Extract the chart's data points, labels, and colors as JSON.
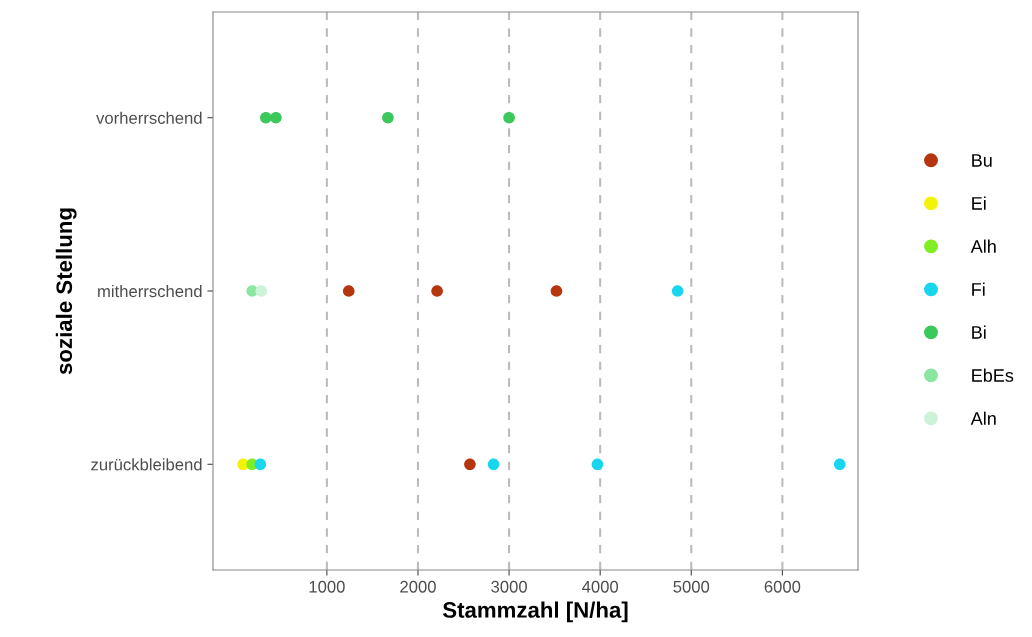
{
  "chart_data": {
    "type": "scatter",
    "orientation": "horizontal",
    "xlabel": "Stammzahl [N/ha]",
    "ylabel": "soziale Stellung",
    "categories": [
      "vorherrschend",
      "mitherrschend",
      "zurückbleibend"
    ],
    "xlim": [
      -250,
      6830
    ],
    "xticks": [
      1000,
      2000,
      3000,
      4000,
      5000,
      6000
    ],
    "grid": "x",
    "line_style": "dashed",
    "legend": "right",
    "marker": "circle",
    "series": [
      {
        "name": "Bu",
        "color": "#b5360f",
        "values": [
          null,
          1240,
          2570
        ]
      },
      {
        "name": "Ei",
        "color": "#f5f20a",
        "values": [
          null,
          null,
          80
        ]
      },
      {
        "name": "Alh",
        "color": "#80ee22",
        "values": [
          null,
          null,
          180
        ]
      },
      {
        "name": "Fi",
        "color": "#1ad5ee",
        "values": [
          null,
          4850,
          270
        ]
      },
      {
        "name": "Bi",
        "color": "#3cc85a",
        "values": [
          330,
          null,
          null
        ]
      },
      {
        "name": "EbEs",
        "color": "#8ae6a0",
        "values": [
          null,
          180,
          null
        ]
      },
      {
        "name": "Aln",
        "color": "#ccf2d8",
        "values": [
          null,
          280,
          null
        ]
      },
      {
        "color": "#b5360f",
        "values": [
          null,
          2210,
          null
        ]
      },
      {
        "color": "#b5360f",
        "values": [
          null,
          3520,
          null
        ]
      },
      {
        "color": "#1ad5ee",
        "values": [
          null,
          null,
          2830
        ]
      },
      {
        "color": "#1ad5ee",
        "values": [
          null,
          null,
          3970
        ]
      },
      {
        "color": "#1ad5ee",
        "values": [
          null,
          null,
          6630
        ]
      },
      {
        "color": "#3cc85a",
        "values": [
          440,
          null,
          null
        ]
      },
      {
        "color": "#3cc85a",
        "values": [
          1670,
          null,
          null
        ]
      },
      {
        "color": "#3cc85a",
        "values": [
          3000,
          null,
          null
        ]
      }
    ]
  }
}
